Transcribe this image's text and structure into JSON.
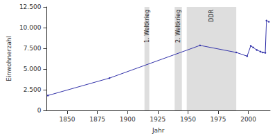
{
  "chart_data": {
    "type": "line",
    "x_label": "Jahr",
    "y_label": "Einwohnerzahl",
    "x": [
      1834,
      1885,
      1960,
      1990,
      1999,
      2002,
      2004,
      2007,
      2010,
      2012,
      2014,
      2015,
      2017
    ],
    "values": [
      1800,
      3900,
      7850,
      7000,
      6550,
      7800,
      7600,
      7300,
      7100,
      7000,
      6950,
      10850,
      10700
    ],
    "color": "#3333aa",
    "marker": "circle",
    "line_style": "solid",
    "xlim": [
      1833,
      2018
    ],
    "xticks": [
      1850,
      1875,
      1900,
      1925,
      1950,
      1975,
      2000
    ],
    "ylim": [
      0,
      12500
    ],
    "yticks": [
      0,
      {
        "value": 2500,
        "label": "2.500"
      },
      {
        "value": 5000,
        "label": "5.000"
      },
      {
        "value": 7500,
        "label": "7.500"
      },
      {
        "value": 10000,
        "label": "10.000"
      },
      {
        "value": 12500,
        "label": "12.500"
      }
    ],
    "grid": false,
    "annotations": [
      {
        "text": "1. Weltkrieg",
        "x_start": 1914,
        "x_end": 1918
      },
      {
        "text": "2. Weltkrieg",
        "x_start": 1939,
        "x_end": 1945
      },
      {
        "text": "DDR",
        "x_start": 1949,
        "x_end": 1990
      }
    ]
  }
}
